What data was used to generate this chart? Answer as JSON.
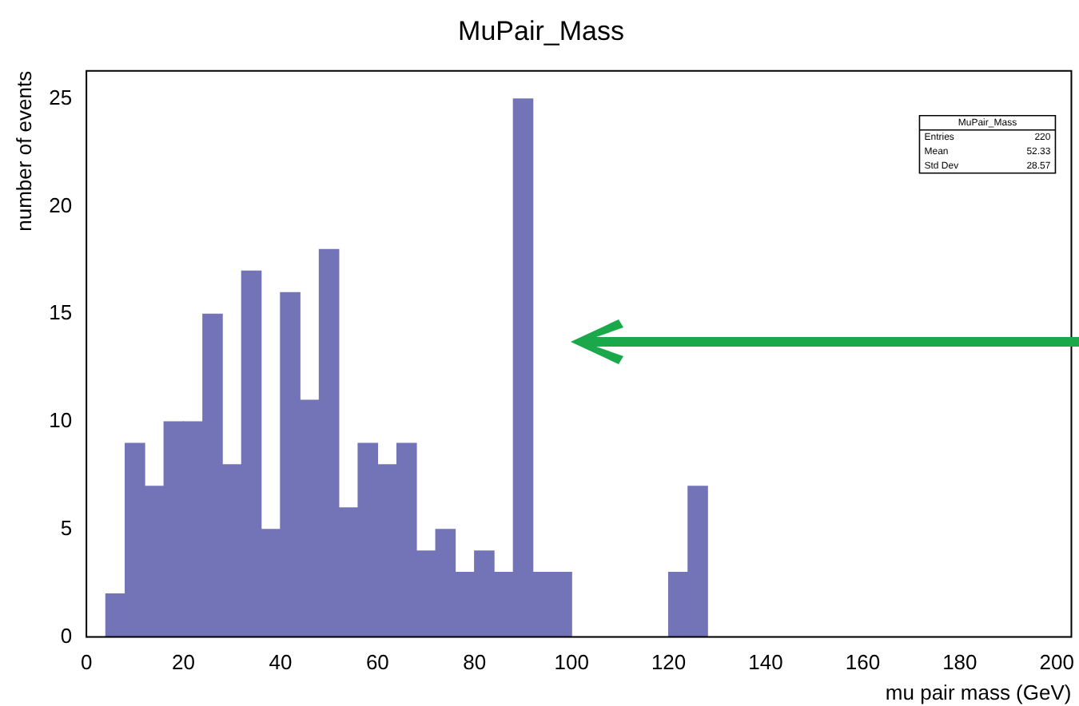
{
  "chart_data": {
    "type": "histogram",
    "title": "MuPair_Mass",
    "xlabel": "mu pair mass (GeV)",
    "ylabel": "number of events",
    "bins": [
      0,
      4,
      8,
      12,
      16,
      20,
      24,
      28,
      32,
      36,
      40,
      44,
      48,
      52,
      56,
      60,
      64,
      68,
      72,
      76,
      80,
      84,
      88,
      92,
      96,
      100,
      104,
      108,
      112,
      116,
      120,
      124,
      128,
      132,
      136,
      140,
      144,
      148,
      152,
      156,
      160,
      164,
      168,
      172,
      176,
      180,
      184,
      188,
      192,
      196,
      200
    ],
    "values": [
      0,
      2,
      9,
      7,
      10,
      10,
      15,
      8,
      17,
      5,
      16,
      11,
      18,
      6,
      9,
      8,
      9,
      4,
      5,
      3,
      4,
      3,
      25,
      3,
      3,
      0,
      0,
      0,
      0,
      0,
      3,
      7,
      0,
      0,
      0,
      0,
      0,
      0,
      0,
      0,
      0,
      0,
      0,
      0,
      0,
      0,
      0,
      0,
      0,
      0
    ],
    "color": "#7373b8",
    "xlim": [
      0,
      203
    ],
    "xticks": [
      0,
      20,
      40,
      60,
      80,
      100,
      120,
      140,
      160,
      180,
      200
    ],
    "ylim": [
      0,
      26.3
    ],
    "yticks": [
      0,
      5,
      10,
      15,
      20,
      25
    ],
    "grid": false,
    "legend": false,
    "annotations": [
      "MuPair_Mass",
      "Entries 220",
      "Mean 52.33",
      "Std Dev 28.57"
    ]
  }
}
